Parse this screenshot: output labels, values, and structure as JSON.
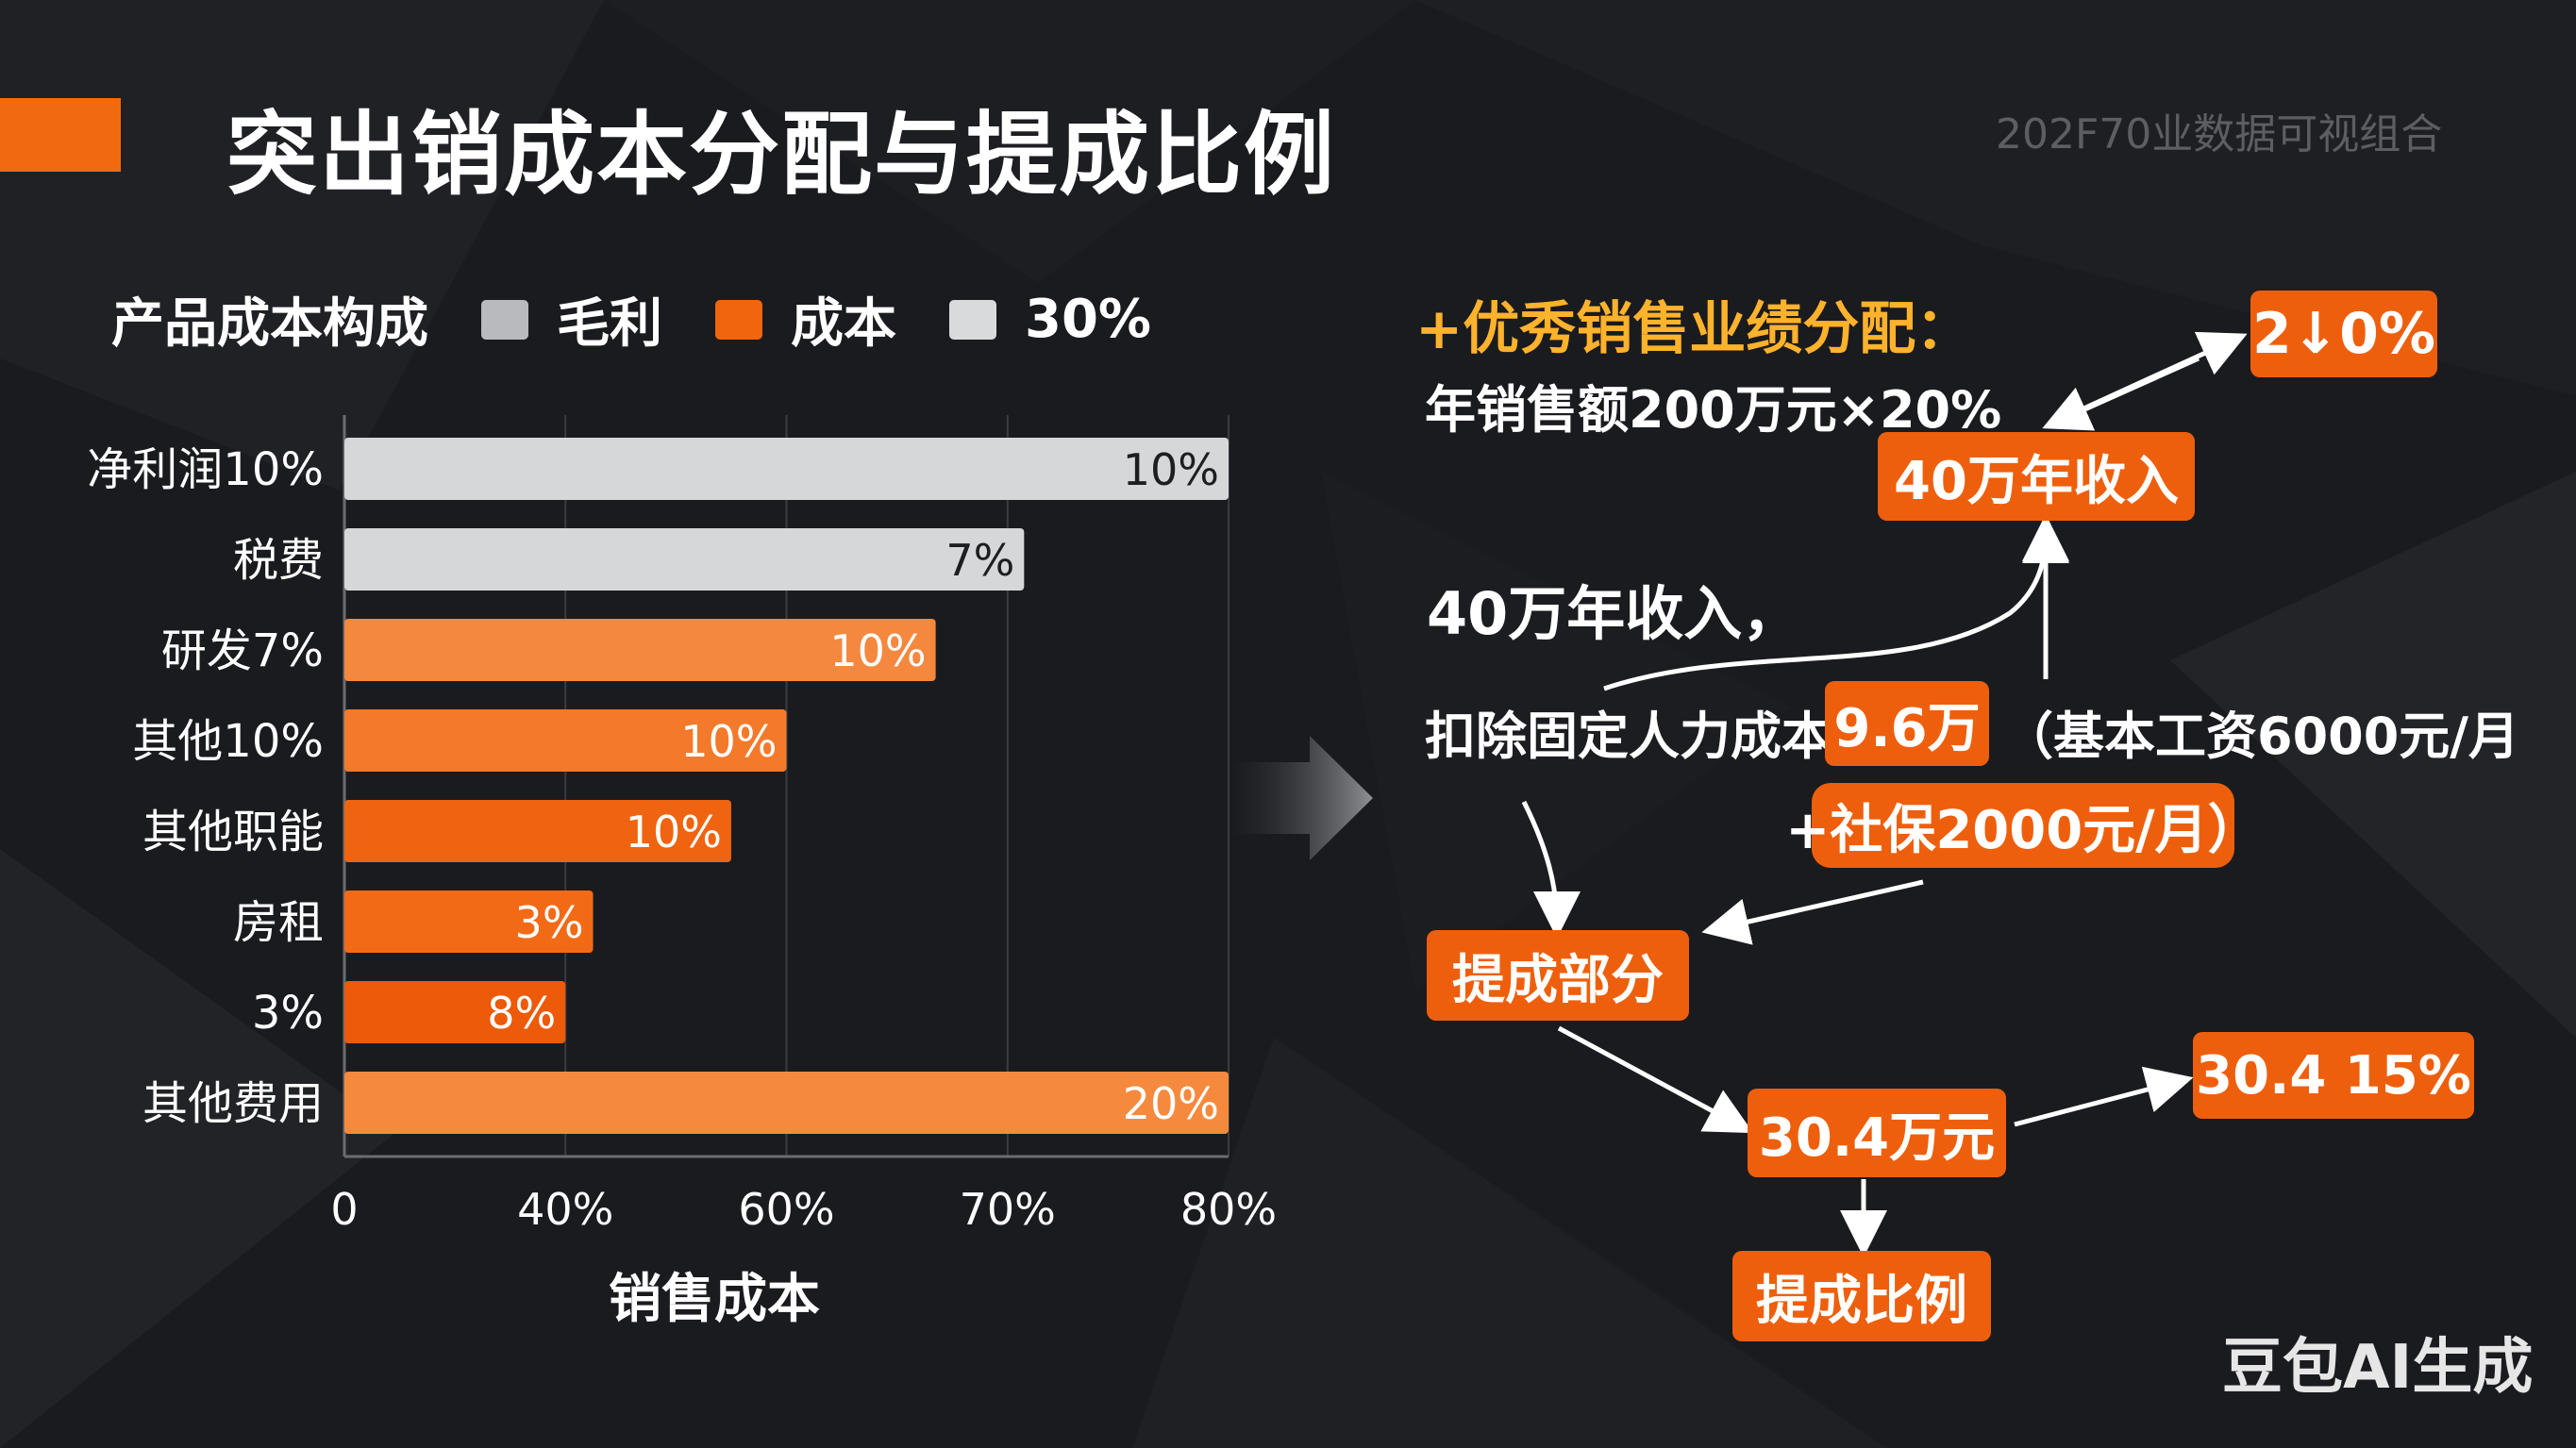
{
  "header": {
    "title": "突出销成本分配与提成比例",
    "note": "202Ϝ70业数据可视组合"
  },
  "legend": {
    "title": "产品成本构成",
    "items": [
      {
        "label": "毛利",
        "color": "#b8babd"
      },
      {
        "label": "成本",
        "color": "#f2650f"
      },
      {
        "label": "30%",
        "color": "#d9dadc"
      }
    ]
  },
  "chart_data": {
    "type": "bar",
    "orientation": "horizontal",
    "categories": [
      "净利润10%",
      "税费",
      "研发7%",
      "其他10%",
      "其他职能",
      "房租",
      "3%",
      "其他费用"
    ],
    "values": [
      80,
      61.5,
      53.5,
      40,
      35,
      22.5,
      20,
      80
    ],
    "data_labels": [
      "10%",
      "7%",
      "10%",
      "10%",
      "10%",
      "3%",
      "8%",
      "20%"
    ],
    "bar_colors": [
      "#d6d7d9",
      "#d6d7d9",
      "#f4883f",
      "#f37a2a",
      "#ef6410",
      "#f26a16",
      "#ec5a0a",
      "#f58a3e"
    ],
    "x_ticks": [
      "0",
      "40%",
      "60%",
      "70%",
      "80%"
    ],
    "x_tick_values": [
      0,
      20,
      40,
      60,
      80
    ],
    "xlim": [
      0,
      80
    ],
    "xlabel": "销售成本",
    "ylabel": "",
    "grid": true
  },
  "right_panel": {
    "heading": "+优秀销售业绩分配：",
    "line1": "年销售额200万元×20%",
    "box_top_pct": "2↓0%",
    "box_income": "40万年收入",
    "text_income": "40万年收入，",
    "text_deduct": "扣除固定人力成本",
    "box_deduct": "9.6万",
    "text_salary": "（基本工资6000元/月",
    "box_social": "+社保2000元/月）",
    "box_commission": "提成部分",
    "box_amount": "30.4万元",
    "box_rate": "30.4 15%",
    "box_ratio": "提成比例"
  },
  "watermark": "豆包AI生成"
}
